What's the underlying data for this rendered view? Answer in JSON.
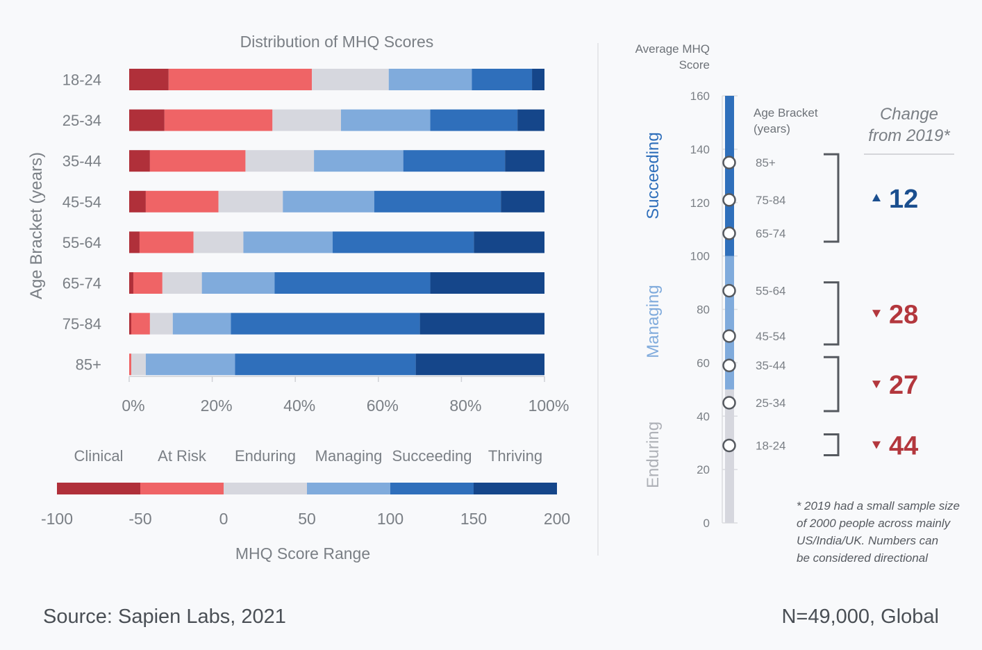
{
  "colors": {
    "clinical": "#b0303a",
    "at_risk": "#ef6466",
    "enduring": "#d6d7de",
    "managing": "#80abdc",
    "succeeding": "#2f6fbb",
    "thriving": "#15468a",
    "change_up": "#1b4f8f",
    "change_down": "#b3373d",
    "muted_text": "#7a7f85"
  },
  "chart_data": [
    {
      "type": "bar",
      "orientation": "horizontal",
      "stacked": true,
      "title": "Distribution of MHQ Scores",
      "ylabel": "Age Bracket (years)",
      "xlim": [
        0,
        100
      ],
      "x_ticks": [
        "0%",
        "20%",
        "40%",
        "60%",
        "80%",
        "100%"
      ],
      "categories": [
        "18-24",
        "25-34",
        "35-44",
        "45-54",
        "55-64",
        "65-74",
        "75-84",
        "85+"
      ],
      "series": [
        {
          "name": "Clinical",
          "color_key": "clinical",
          "values": [
            9.5,
            8.5,
            5.0,
            4.0,
            2.5,
            1.0,
            0.5,
            0.0
          ]
        },
        {
          "name": "At Risk",
          "color_key": "at_risk",
          "values": [
            34.5,
            26.0,
            23.0,
            17.5,
            13.0,
            7.0,
            4.5,
            0.5
          ]
        },
        {
          "name": "Enduring",
          "color_key": "enduring",
          "values": [
            18.5,
            16.5,
            16.5,
            15.5,
            12.0,
            9.5,
            5.5,
            3.5
          ]
        },
        {
          "name": "Managing",
          "color_key": "managing",
          "values": [
            20.0,
            21.5,
            21.5,
            22.0,
            21.5,
            17.5,
            14.0,
            21.5
          ]
        },
        {
          "name": "Succeeding",
          "color_key": "succeeding",
          "values": [
            14.5,
            21.0,
            24.5,
            30.5,
            34.0,
            37.5,
            45.5,
            43.5
          ]
        },
        {
          "name": "Thriving",
          "color_key": "thriving",
          "values": [
            3.0,
            6.5,
            9.5,
            10.5,
            17.0,
            27.5,
            30.0,
            31.0
          ]
        }
      ],
      "grid": false,
      "legend": "bottom"
    },
    {
      "type": "scale-legend",
      "title": "MHQ Score Range",
      "categories": [
        "Clinical",
        "At Risk",
        "Enduring",
        "Managing",
        "Succeeding",
        "Thriving"
      ],
      "segments": [
        {
          "name": "Clinical",
          "from": -100,
          "to": -50
        },
        {
          "name": "At Risk",
          "from": -50,
          "to": 0
        },
        {
          "name": "Enduring",
          "from": 0,
          "to": 50
        },
        {
          "name": "Managing",
          "from": 50,
          "to": 100
        },
        {
          "name": "Succeeding",
          "from": 100,
          "to": 150
        },
        {
          "name": "Thriving",
          "from": 150,
          "to": 200
        }
      ],
      "ticks": [
        "-100",
        "-50",
        "0",
        "50",
        "100",
        "150",
        "200"
      ],
      "xlim": [
        -100,
        200
      ]
    },
    {
      "type": "scatter",
      "title": "Average MHQ Score",
      "ylim": [
        0,
        160
      ],
      "y_ticks": [
        0,
        20,
        40,
        60,
        80,
        100,
        120,
        140,
        160
      ],
      "bands": [
        {
          "name": "Enduring",
          "from": 0,
          "to": 50
        },
        {
          "name": "Managing",
          "from": 50,
          "to": 100
        },
        {
          "name": "Succeeding",
          "from": 100,
          "to": 160
        }
      ],
      "points_header": "Age Bracket (years)",
      "points": [
        {
          "label": "85+",
          "value": 135
        },
        {
          "label": "75-84",
          "value": 121
        },
        {
          "label": "65-74",
          "value": 108.5
        },
        {
          "label": "55-64",
          "value": 87
        },
        {
          "label": "45-54",
          "value": 70
        },
        {
          "label": "35-44",
          "value": 59
        },
        {
          "label": "25-34",
          "value": 45
        },
        {
          "label": "18-24",
          "value": 29
        }
      ],
      "change_header": "Change from 2019*",
      "changes": [
        {
          "from": 108.5,
          "to": 135,
          "direction": "up",
          "value": "12"
        },
        {
          "from": 70,
          "to": 87,
          "direction": "down",
          "value": "28"
        },
        {
          "from": 45,
          "to": 59,
          "direction": "down",
          "value": "27"
        },
        {
          "from": 29,
          "to": 29,
          "direction": "down",
          "value": "44"
        }
      ]
    }
  ],
  "text": {
    "dist_title": "Distribution of MHQ Scores",
    "dist_ylabel": "Age Bracket (years)",
    "score_range_label": "MHQ Score Range",
    "avg_title_line1": "Average MHQ",
    "avg_title_line2": "Score",
    "age_header_line1": "Age Bracket",
    "age_header_line2": "(years)",
    "change_header_line1": "Change",
    "change_header_line2": "from 2019*",
    "band_succeeding": "Succeeding",
    "band_managing": "Managing",
    "band_enduring": "Enduring",
    "footnote": [
      "* 2019 had a small sample size",
      "of 2000 people across mainly",
      "US/India/UK.  Numbers can",
      "be considered directional"
    ],
    "source": "Source: Sapien Labs, 2021",
    "sample": "N=49,000, Global"
  }
}
